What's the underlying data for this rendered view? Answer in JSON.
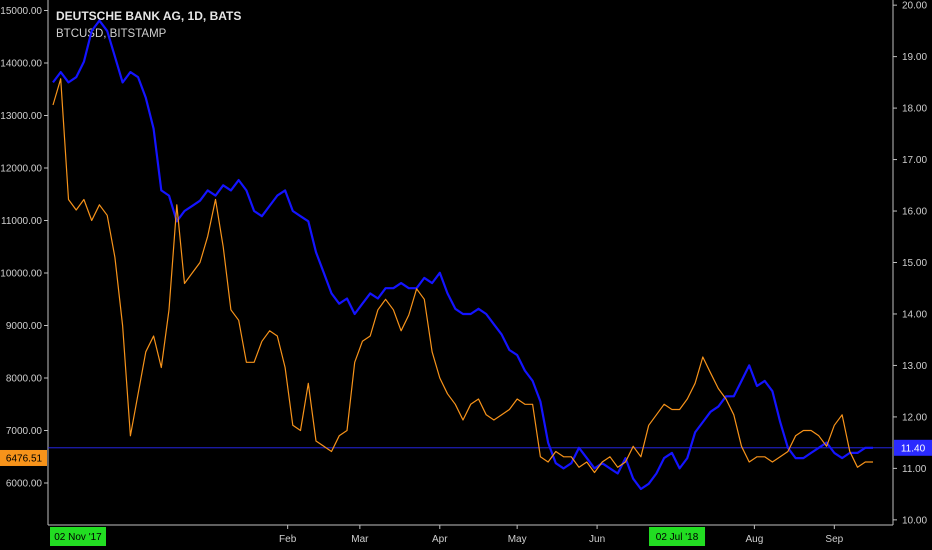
{
  "header": {
    "title": "DEUTSCHE BANK AG, 1D, BATS",
    "subtitle": "BTCUSD, BITSTAMP"
  },
  "colors": {
    "background": "#000000",
    "db_line": "#1414ff",
    "btc_line": "#f7931a",
    "axis_line": "#bfbfbf",
    "price_line": "#2a2aff",
    "date_highlight": "#22dd22"
  },
  "chart_data": {
    "type": "line",
    "x_ticks": [
      "Feb",
      "Mar",
      "Apr",
      "May",
      "Jun",
      "Aug",
      "Sep"
    ],
    "x_highlight_labels": [
      "02 Nov '17",
      "02 Jul '18"
    ],
    "left_axis": {
      "ticks": [
        "6000.00",
        "7000.00",
        "8000.00",
        "9000.00",
        "10000.00",
        "11000.00",
        "12000.00",
        "13000.00",
        "14000.00",
        "15000.00"
      ],
      "ylim": [
        5200,
        15200
      ],
      "current_label": "6476.51"
    },
    "right_axis": {
      "ticks": [
        "10.00",
        "11.00",
        "12.00",
        "13.00",
        "14.00",
        "15.00",
        "16.00",
        "17.00",
        "18.00",
        "19.00",
        "20.00"
      ],
      "ylim": [
        9.9,
        20.1
      ],
      "current_label": "11.40"
    },
    "series": [
      {
        "name": "DEUTSCHE BANK AG",
        "axis": "right",
        "x": [
          "2017-11-02",
          "2017-11-05",
          "2017-11-08",
          "2017-11-11",
          "2017-11-14",
          "2017-11-17",
          "2017-11-20",
          "2017-11-23",
          "2017-11-26",
          "2017-11-29",
          "2017-12-02",
          "2017-12-05",
          "2017-12-08",
          "2017-12-11",
          "2017-12-14",
          "2017-12-17",
          "2017-12-20",
          "2017-12-23",
          "2017-12-26",
          "2017-12-29",
          "2018-01-01",
          "2018-01-04",
          "2018-01-07",
          "2018-01-10",
          "2018-01-13",
          "2018-01-16",
          "2018-01-19",
          "2018-01-22",
          "2018-01-25",
          "2018-01-28",
          "2018-01-31",
          "2018-02-03",
          "2018-02-06",
          "2018-02-09",
          "2018-02-12",
          "2018-02-15",
          "2018-02-18",
          "2018-02-21",
          "2018-02-24",
          "2018-02-27",
          "2018-03-02",
          "2018-03-05",
          "2018-03-08",
          "2018-03-11",
          "2018-03-14",
          "2018-03-17",
          "2018-03-20",
          "2018-03-23",
          "2018-03-26",
          "2018-03-29",
          "2018-04-01",
          "2018-04-04",
          "2018-04-07",
          "2018-04-10",
          "2018-04-13",
          "2018-04-16",
          "2018-04-19",
          "2018-04-22",
          "2018-04-25",
          "2018-04-28",
          "2018-05-01",
          "2018-05-04",
          "2018-05-07",
          "2018-05-10",
          "2018-05-13",
          "2018-05-16",
          "2018-05-19",
          "2018-05-22",
          "2018-05-25",
          "2018-05-28",
          "2018-05-31",
          "2018-06-03",
          "2018-06-06",
          "2018-06-09",
          "2018-06-12",
          "2018-06-15",
          "2018-06-18",
          "2018-06-21",
          "2018-06-24",
          "2018-06-27",
          "2018-06-30",
          "2018-07-03",
          "2018-07-06",
          "2018-07-09",
          "2018-07-12",
          "2018-07-15",
          "2018-07-18",
          "2018-07-21",
          "2018-07-24",
          "2018-07-27",
          "2018-07-30",
          "2018-08-02",
          "2018-08-05",
          "2018-08-08",
          "2018-08-11",
          "2018-08-14",
          "2018-08-17",
          "2018-08-20",
          "2018-08-23",
          "2018-08-26",
          "2018-08-29",
          "2018-09-01",
          "2018-09-04",
          "2018-09-07",
          "2018-09-10",
          "2018-09-13",
          "2018-09-16"
        ],
        "values": [
          18.5,
          18.7,
          18.5,
          18.6,
          18.9,
          19.5,
          19.7,
          19.5,
          19.0,
          18.5,
          18.7,
          18.6,
          18.2,
          17.6,
          16.4,
          16.3,
          15.8,
          16.0,
          16.1,
          16.2,
          16.4,
          16.3,
          16.5,
          16.4,
          16.6,
          16.4,
          16.0,
          15.9,
          16.1,
          16.3,
          16.4,
          16.0,
          15.9,
          15.8,
          15.2,
          14.8,
          14.4,
          14.2,
          14.3,
          14.0,
          14.2,
          14.4,
          14.3,
          14.5,
          14.5,
          14.6,
          14.5,
          14.5,
          14.7,
          14.6,
          14.8,
          14.4,
          14.1,
          14.0,
          14.0,
          14.1,
          14.0,
          13.8,
          13.6,
          13.3,
          13.2,
          12.9,
          12.7,
          12.3,
          11.5,
          11.1,
          11.0,
          11.1,
          11.4,
          11.2,
          11.0,
          11.1,
          11.0,
          10.9,
          11.2,
          10.8,
          10.6,
          10.7,
          10.9,
          11.2,
          11.3,
          11.0,
          11.2,
          11.7,
          11.9,
          12.1,
          12.2,
          12.4,
          12.4,
          12.7,
          13.0,
          12.6,
          12.7,
          12.5,
          11.9,
          11.4,
          11.2,
          11.2,
          11.3,
          11.4,
          11.5,
          11.3,
          11.2,
          11.3,
          11.3,
          11.4,
          11.4
        ]
      },
      {
        "name": "BTCUSD",
        "axis": "left",
        "x": [
          "2017-11-02",
          "2017-11-05",
          "2017-11-08",
          "2017-11-11",
          "2017-11-14",
          "2017-11-17",
          "2017-11-20",
          "2017-11-23",
          "2017-11-26",
          "2017-11-29",
          "2017-12-02",
          "2017-12-05",
          "2017-12-08",
          "2017-12-11",
          "2017-12-14",
          "2017-12-17",
          "2017-12-20",
          "2017-12-23",
          "2017-12-26",
          "2017-12-29",
          "2018-01-01",
          "2018-01-04",
          "2018-01-07",
          "2018-01-10",
          "2018-01-13",
          "2018-01-16",
          "2018-01-19",
          "2018-01-22",
          "2018-01-25",
          "2018-01-28",
          "2018-01-31",
          "2018-02-03",
          "2018-02-06",
          "2018-02-09",
          "2018-02-12",
          "2018-02-15",
          "2018-02-18",
          "2018-02-21",
          "2018-02-24",
          "2018-02-27",
          "2018-03-02",
          "2018-03-05",
          "2018-03-08",
          "2018-03-11",
          "2018-03-14",
          "2018-03-17",
          "2018-03-20",
          "2018-03-23",
          "2018-03-26",
          "2018-03-29",
          "2018-04-01",
          "2018-04-04",
          "2018-04-07",
          "2018-04-10",
          "2018-04-13",
          "2018-04-16",
          "2018-04-19",
          "2018-04-22",
          "2018-04-25",
          "2018-04-28",
          "2018-05-01",
          "2018-05-04",
          "2018-05-07",
          "2018-05-10",
          "2018-05-13",
          "2018-05-16",
          "2018-05-19",
          "2018-05-22",
          "2018-05-25",
          "2018-05-28",
          "2018-05-31",
          "2018-06-03",
          "2018-06-06",
          "2018-06-09",
          "2018-06-12",
          "2018-06-15",
          "2018-06-18",
          "2018-06-21",
          "2018-06-24",
          "2018-06-27",
          "2018-06-30",
          "2018-07-03",
          "2018-07-06",
          "2018-07-09",
          "2018-07-12",
          "2018-07-15",
          "2018-07-18",
          "2018-07-21",
          "2018-07-24",
          "2018-07-27",
          "2018-07-30",
          "2018-08-02",
          "2018-08-05",
          "2018-08-08",
          "2018-08-11",
          "2018-08-14",
          "2018-08-17",
          "2018-08-20",
          "2018-08-23",
          "2018-08-26",
          "2018-08-29",
          "2018-09-01",
          "2018-09-04",
          "2018-09-07",
          "2018-09-10",
          "2018-09-13",
          "2018-09-16"
        ],
        "values": [
          13200,
          13700,
          11400,
          11200,
          11400,
          11000,
          11300,
          11100,
          10300,
          9000,
          6900,
          7700,
          8500,
          8800,
          8200,
          9300,
          11300,
          9800,
          10000,
          10200,
          10700,
          11400,
          10500,
          9300,
          9100,
          8300,
          8300,
          8700,
          8900,
          8800,
          8200,
          7100,
          7000,
          7900,
          6800,
          6700,
          6600,
          6900,
          7000,
          8300,
          8700,
          8800,
          9300,
          9500,
          9300,
          8900,
          9200,
          9700,
          9500,
          8500,
          8000,
          7700,
          7500,
          7200,
          7500,
          7600,
          7300,
          7200,
          7300,
          7400,
          7600,
          7500,
          7500,
          6500,
          6400,
          6600,
          6500,
          6500,
          6300,
          6400,
          6200,
          6400,
          6500,
          6300,
          6400,
          6700,
          6500,
          7100,
          7300,
          7500,
          7400,
          7400,
          7600,
          7900,
          8400,
          8100,
          7800,
          7600,
          7300,
          6700,
          6400,
          6500,
          6500,
          6400,
          6500,
          6600,
          6900,
          7000,
          7000,
          6900,
          6700,
          7100,
          7300,
          6600,
          6300,
          6400,
          6400
        ]
      }
    ]
  }
}
